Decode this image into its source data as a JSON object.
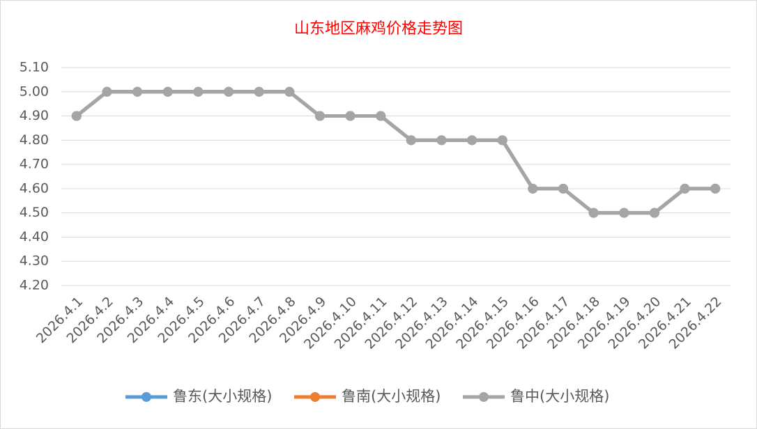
{
  "chart_data": {
    "type": "line",
    "title": "山东地区麻鸡价格走势图",
    "categories": [
      "2026.4.1",
      "2026.4.2",
      "2026.4.3",
      "2026.4.4",
      "2026.4.5",
      "2026.4.6",
      "2026.4.7",
      "2026.4.8",
      "2026.4.9",
      "2026.4.10",
      "2026.4.11",
      "2026.4.12",
      "2026.4.13",
      "2026.4.14",
      "2026.4.15",
      "2026.4.16",
      "2026.4.17",
      "2026.4.18",
      "2026.4.19",
      "2026.4.20",
      "2026.4.21",
      "2026.4.22"
    ],
    "series": [
      {
        "name": "鲁东(大小规格)",
        "color": "#5b9bd5",
        "values": [
          4.9,
          5.0,
          5.0,
          5.0,
          5.0,
          5.0,
          5.0,
          5.0,
          4.9,
          4.9,
          4.9,
          4.8,
          4.8,
          4.8,
          4.8,
          4.6,
          4.6,
          4.5,
          4.5,
          4.5,
          4.6,
          4.6
        ]
      },
      {
        "name": "鲁南(大小规格)",
        "color": "#ed7d31",
        "values": [
          4.9,
          5.0,
          5.0,
          5.0,
          5.0,
          5.0,
          5.0,
          5.0,
          4.9,
          4.9,
          4.9,
          4.8,
          4.8,
          4.8,
          4.8,
          4.6,
          4.6,
          4.5,
          4.5,
          4.5,
          4.6,
          4.6
        ]
      },
      {
        "name": "鲁中(大小规格)",
        "color": "#a5a5a5",
        "values": [
          4.9,
          5.0,
          5.0,
          5.0,
          5.0,
          5.0,
          5.0,
          5.0,
          4.9,
          4.9,
          4.9,
          4.8,
          4.8,
          4.8,
          4.8,
          4.6,
          4.6,
          4.5,
          4.5,
          4.5,
          4.6,
          4.6
        ]
      }
    ],
    "ylim": [
      4.2,
      5.1
    ],
    "yticks": [
      {
        "value": 4.2,
        "label": "4.20"
      },
      {
        "value": 4.3,
        "label": "4.30"
      },
      {
        "value": 4.4,
        "label": "4.40"
      },
      {
        "value": 4.5,
        "label": "4.50"
      },
      {
        "value": 4.6,
        "label": "4.60"
      },
      {
        "value": 4.7,
        "label": "4.70"
      },
      {
        "value": 4.8,
        "label": "4.80"
      },
      {
        "value": 4.9,
        "label": "4.90"
      },
      {
        "value": 5.0,
        "label": "5.00"
      },
      {
        "value": 5.1,
        "label": "5.10"
      }
    ],
    "grid": true,
    "legend": "bottom"
  }
}
